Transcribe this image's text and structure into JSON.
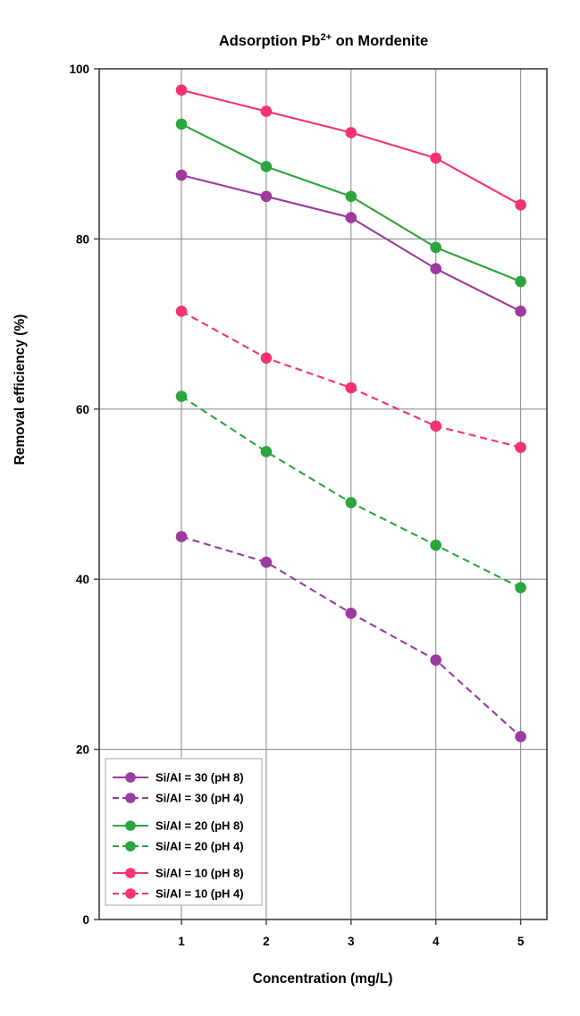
{
  "chart_data": {
    "type": "line",
    "title_parts": {
      "prefix": "Adsorption Pb",
      "superscript": "2+",
      "suffix": " on Mordenite"
    },
    "title_plain": "Adsorption Pb2+ on Mordenite",
    "xlabel": "Concentration (mg/L)",
    "ylabel": "Removal efficiency (%)",
    "x": [
      1,
      2,
      3,
      4,
      5
    ],
    "x_tick_labels": [
      "1",
      "2",
      "3",
      "4",
      "5"
    ],
    "y_ticks": [
      0,
      20,
      40,
      60,
      80,
      100
    ],
    "y_tick_labels": [
      "0",
      "20",
      "40",
      "60",
      "80",
      "100"
    ],
    "xlim": [
      0.03,
      5.31
    ],
    "ylim": [
      0,
      100
    ],
    "grid": true,
    "legend_position": "bottom-left",
    "series": [
      {
        "name": "Si/Al = 30 (pH 8)",
        "color": "#9b3aa0",
        "style": "solid",
        "values": [
          87.5,
          85,
          82.5,
          76.5,
          71.5
        ]
      },
      {
        "name": "Si/Al = 30 (pH 4)",
        "color": "#9b3aa0",
        "style": "dashed",
        "values": [
          45,
          42,
          36,
          30.5,
          21.5
        ]
      },
      {
        "name": "Si/Al = 20 (pH 8)",
        "color": "#2ba53e",
        "style": "solid",
        "values": [
          93.5,
          88.5,
          85,
          79,
          75
        ]
      },
      {
        "name": "Si/Al = 20 (pH 4)",
        "color": "#2ba53e",
        "style": "dashed",
        "values": [
          61.5,
          55,
          49,
          44,
          39
        ]
      },
      {
        "name": "Si/Al = 10 (pH 8)",
        "color": "#f5336f",
        "style": "solid",
        "values": [
          97.5,
          95,
          92.5,
          89.5,
          84
        ]
      },
      {
        "name": "Si/Al = 10 (pH 4)",
        "color": "#f5336f",
        "style": "dashed",
        "values": [
          71.5,
          66,
          62.5,
          58,
          55.5
        ]
      }
    ],
    "colors": {
      "text": "#000000",
      "grid": "#909090",
      "plot_border": "#3f3f3f",
      "legend_border": "#b4b4b4",
      "background": "#ffffff"
    }
  }
}
